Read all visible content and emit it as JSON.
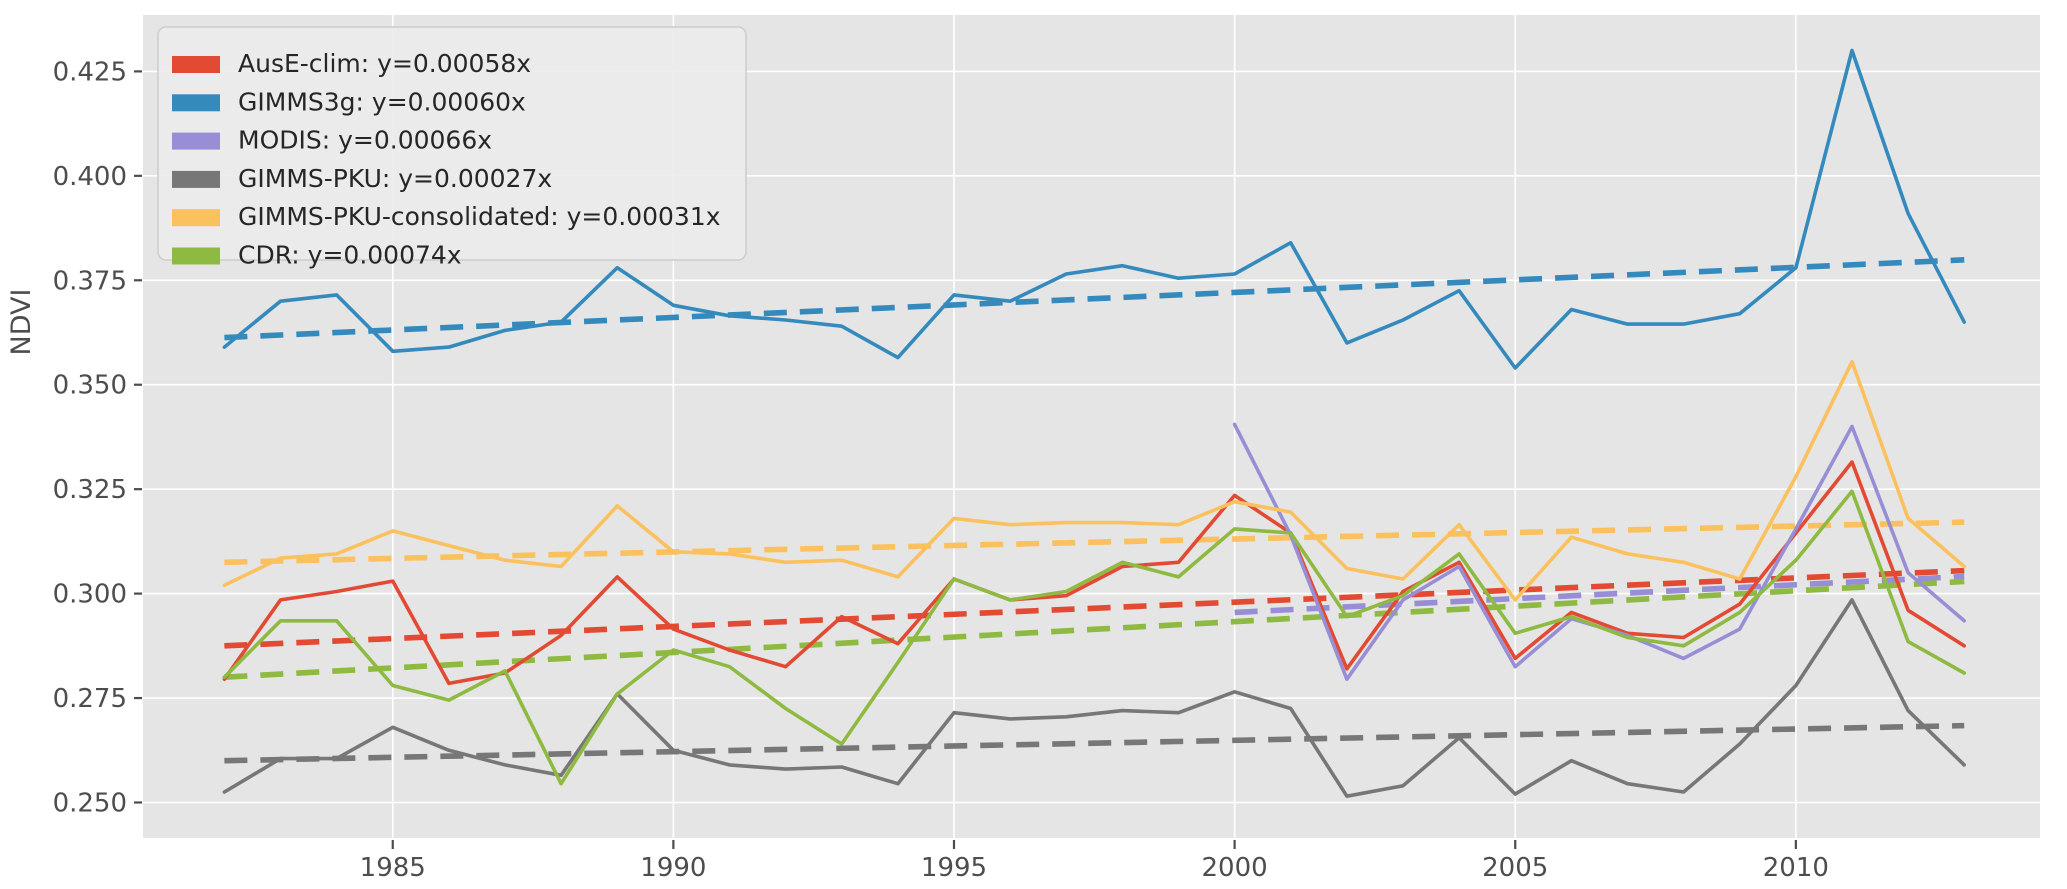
{
  "figure": {
    "ylabel": "NDVI"
  },
  "palette": {
    "figure_bg": "#ffffff",
    "plot_bg": "#e5e5e5",
    "grid": "#ffffff",
    "tick_text": "#4d4d4d",
    "legend_bg": "#ebebeb",
    "legend_border": "#cccccc",
    "legend_text": "#262626"
  },
  "chart_data": {
    "type": "line",
    "title": "",
    "xlabel": "",
    "ylabel": "NDVI",
    "grid": true,
    "legend_position": "top-left",
    "xlim": [
      1980.55,
      2014.35
    ],
    "ylim": [
      0.2415,
      0.4385
    ],
    "x_ticks": [
      1985,
      1990,
      1995,
      2000,
      2005,
      2010
    ],
    "y_ticks": [
      0.25,
      0.275,
      0.3,
      0.325,
      0.35,
      0.375,
      0.4,
      0.425
    ],
    "years": [
      1982,
      1983,
      1984,
      1985,
      1986,
      1987,
      1988,
      1989,
      1990,
      1991,
      1992,
      1993,
      1994,
      1995,
      1996,
      1997,
      1998,
      1999,
      2000,
      2001,
      2002,
      2003,
      2004,
      2005,
      2006,
      2007,
      2008,
      2009,
      2010,
      2011,
      2012,
      2013
    ],
    "series": [
      {
        "name": "AusE-clim",
        "legend": "AusE-clim: y=0.00058x",
        "color": "#e24a33",
        "start_year": 1982,
        "values": [
          0.2795,
          0.2985,
          0.3005,
          0.303,
          0.2785,
          0.281,
          0.29,
          0.304,
          0.2915,
          0.2865,
          0.2825,
          0.2945,
          0.288,
          0.3035,
          0.2985,
          0.2995,
          0.3065,
          0.3075,
          0.3235,
          0.3145,
          0.282,
          0.3005,
          0.3075,
          0.2845,
          0.2955,
          0.2905,
          0.2895,
          0.2975,
          0.3145,
          0.3315,
          0.296,
          0.2875
        ],
        "trend": {
          "slope_label": "0.00058",
          "x0": 1982,
          "v0": 0.2875,
          "x1": 2013,
          "v1": 0.3055
        }
      },
      {
        "name": "GIMMS3g",
        "legend": "GIMMS3g: y=0.00060x",
        "color": "#348abd",
        "start_year": 1982,
        "values": [
          0.359,
          0.37,
          0.3715,
          0.358,
          0.359,
          0.363,
          0.365,
          0.378,
          0.369,
          0.3665,
          0.3655,
          0.364,
          0.3565,
          0.3715,
          0.37,
          0.3765,
          0.3785,
          0.3755,
          0.3765,
          0.384,
          0.36,
          0.3655,
          0.3725,
          0.354,
          0.368,
          0.3645,
          0.3645,
          0.367,
          0.378,
          0.43,
          0.391,
          0.365
        ],
        "trend": {
          "slope_label": "0.00060",
          "x0": 1982,
          "v0": 0.3613,
          "x1": 2013,
          "v1": 0.3799
        }
      },
      {
        "name": "MODIS",
        "legend": "MODIS: y=0.00066x",
        "color": "#988ed5",
        "start_year": 2000,
        "values": [
          0.3405,
          0.314,
          0.2795,
          0.2985,
          0.3065,
          0.2825,
          0.294,
          0.29,
          0.2845,
          0.2915,
          0.3155,
          0.34,
          0.305,
          0.2935
        ],
        "trend": {
          "slope_label": "0.00066",
          "x0": 2000,
          "v0": 0.2955,
          "x1": 2013,
          "v1": 0.3041
        }
      },
      {
        "name": "GIMMS-PKU",
        "legend": "GIMMS-PKU: y=0.00027x",
        "color": "#777777",
        "start_year": 1982,
        "values": [
          0.2525,
          0.2605,
          0.2605,
          0.268,
          0.2625,
          0.259,
          0.2565,
          0.276,
          0.2625,
          0.259,
          0.258,
          0.2585,
          0.2545,
          0.2715,
          0.27,
          0.2705,
          0.272,
          0.2715,
          0.2765,
          0.2725,
          0.2515,
          0.254,
          0.2655,
          0.252,
          0.26,
          0.2545,
          0.2525,
          0.264,
          0.278,
          0.2985,
          0.272,
          0.259
        ],
        "trend": {
          "slope_label": "0.00027",
          "x0": 1982,
          "v0": 0.26,
          "x1": 2013,
          "v1": 0.2684
        }
      },
      {
        "name": "GIMMS-PKU-consolidated",
        "legend": "GIMMS-PKU-consolidated: y=0.00031x",
        "color": "#fbc15e",
        "start_year": 1982,
        "values": [
          0.302,
          0.3085,
          0.3095,
          0.315,
          0.3115,
          0.308,
          0.3065,
          0.321,
          0.31,
          0.3095,
          0.3075,
          0.308,
          0.304,
          0.318,
          0.3165,
          0.317,
          0.317,
          0.3165,
          0.322,
          0.3195,
          0.306,
          0.3035,
          0.3165,
          0.2985,
          0.3135,
          0.3095,
          0.3075,
          0.3035,
          0.328,
          0.3555,
          0.318,
          0.3065
        ],
        "trend": {
          "slope_label": "0.00031",
          "x0": 1982,
          "v0": 0.3075,
          "x1": 2013,
          "v1": 0.3171
        }
      },
      {
        "name": "CDR",
        "legend": "CDR: y=0.00074x",
        "color": "#8eba42",
        "start_year": 1982,
        "values": [
          0.28,
          0.2935,
          0.2935,
          0.278,
          0.2745,
          0.2815,
          0.2545,
          0.276,
          0.2865,
          0.2825,
          0.2725,
          0.264,
          0.2835,
          0.3035,
          0.2985,
          0.3005,
          0.3075,
          0.304,
          0.3155,
          0.3145,
          0.2945,
          0.2995,
          0.3095,
          0.2905,
          0.2945,
          0.2895,
          0.2875,
          0.2955,
          0.308,
          0.3245,
          0.2885,
          0.281
        ],
        "trend": {
          "slope_label": "0.00074",
          "x0": 1982,
          "v0": 0.28,
          "x1": 2013,
          "v1": 0.3029
        }
      }
    ]
  }
}
